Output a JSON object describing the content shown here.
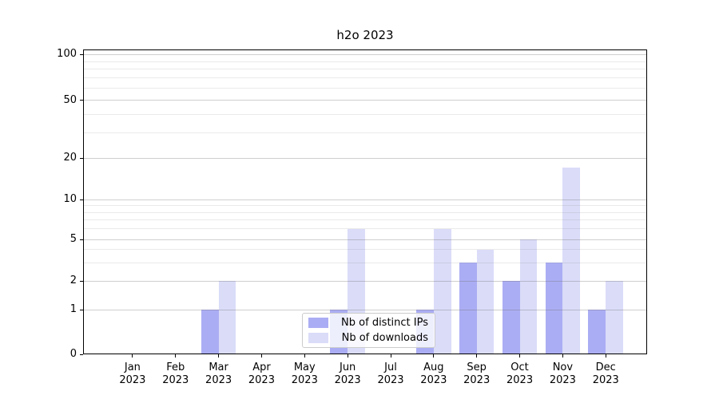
{
  "chart_data": {
    "type": "bar",
    "title": "h2o 2023",
    "year_label": "2023",
    "categories": [
      "Jan",
      "Feb",
      "Mar",
      "Apr",
      "May",
      "Jun",
      "Jul",
      "Aug",
      "Sep",
      "Oct",
      "Nov",
      "Dec"
    ],
    "series": [
      {
        "name": "Nb of distinct IPs",
        "color": "#abadf4",
        "values": [
          0,
          0,
          1,
          0,
          0,
          1,
          0,
          1,
          3,
          2,
          3,
          1
        ]
      },
      {
        "name": "Nb of downloads",
        "color": "#dadcf8",
        "values": [
          0,
          0,
          2,
          0,
          0,
          6,
          0,
          6,
          4,
          5,
          17,
          2
        ]
      }
    ],
    "yscale": "symlog",
    "ylim": [
      0,
      100
    ],
    "y_major_ticks": [
      0,
      1,
      2,
      5,
      10,
      20,
      50,
      100
    ],
    "y_minor_gridlines": [
      3,
      4,
      6,
      7,
      8,
      9,
      30,
      40,
      60,
      70,
      80,
      90
    ],
    "grid": true,
    "legend_position": "lower center",
    "xlabel": "",
    "ylabel": ""
  }
}
